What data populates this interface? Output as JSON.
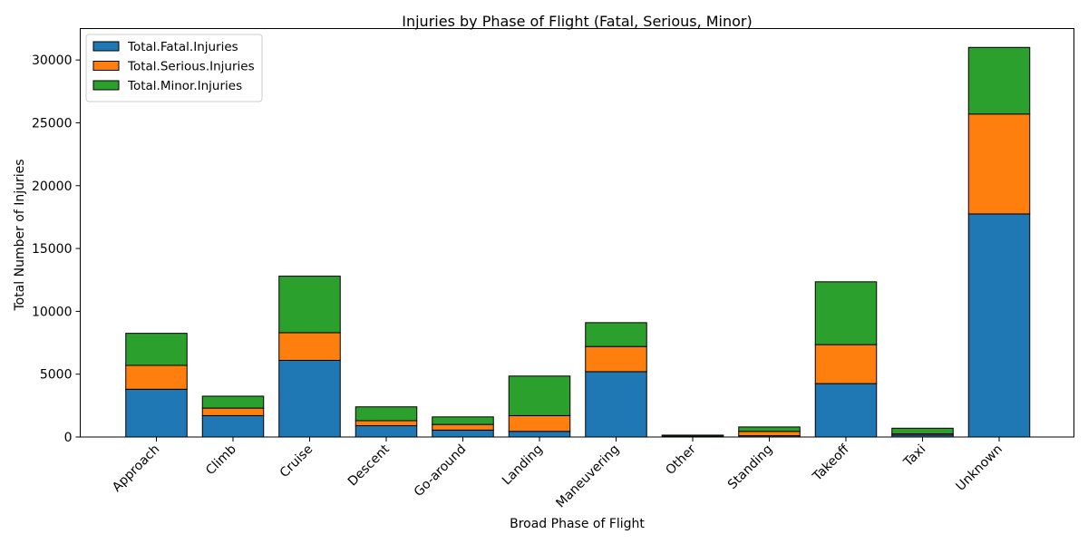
{
  "chart_data": {
    "type": "bar",
    "stacked": true,
    "title": "Injuries by Phase of Flight (Fatal, Serious, Minor)",
    "xlabel": "Broad Phase of Flight",
    "ylabel": "Total Number of Injuries",
    "ylim": [
      0,
      32500
    ],
    "yticks": [
      "0",
      "5000",
      "10000",
      "15000",
      "20000",
      "25000",
      "30000"
    ],
    "grid": false,
    "legend_position": "top-left",
    "categories": [
      "Approach",
      "Climb",
      "Cruise",
      "Descent",
      "Go-around",
      "Landing",
      "Maneuvering",
      "Other",
      "Standing",
      "Takeoff",
      "Taxi",
      "Unknown"
    ],
    "series": [
      {
        "name": "Total.Fatal.Injuries",
        "color": "#1f77b4",
        "values": [
          3800,
          1700,
          6100,
          900,
          550,
          450,
          5200,
          40,
          100,
          4250,
          150,
          17750
        ]
      },
      {
        "name": "Total.Serious.Injuries",
        "color": "#ff7f0e",
        "values": [
          1900,
          600,
          2200,
          400,
          450,
          1250,
          2000,
          30,
          350,
          3100,
          100,
          7950
        ]
      },
      {
        "name": "Total.Minor.Injuries",
        "color": "#2ca02c",
        "values": [
          2550,
          950,
          4500,
          1100,
          600,
          3150,
          1900,
          80,
          350,
          5000,
          450,
          5300
        ]
      }
    ]
  }
}
